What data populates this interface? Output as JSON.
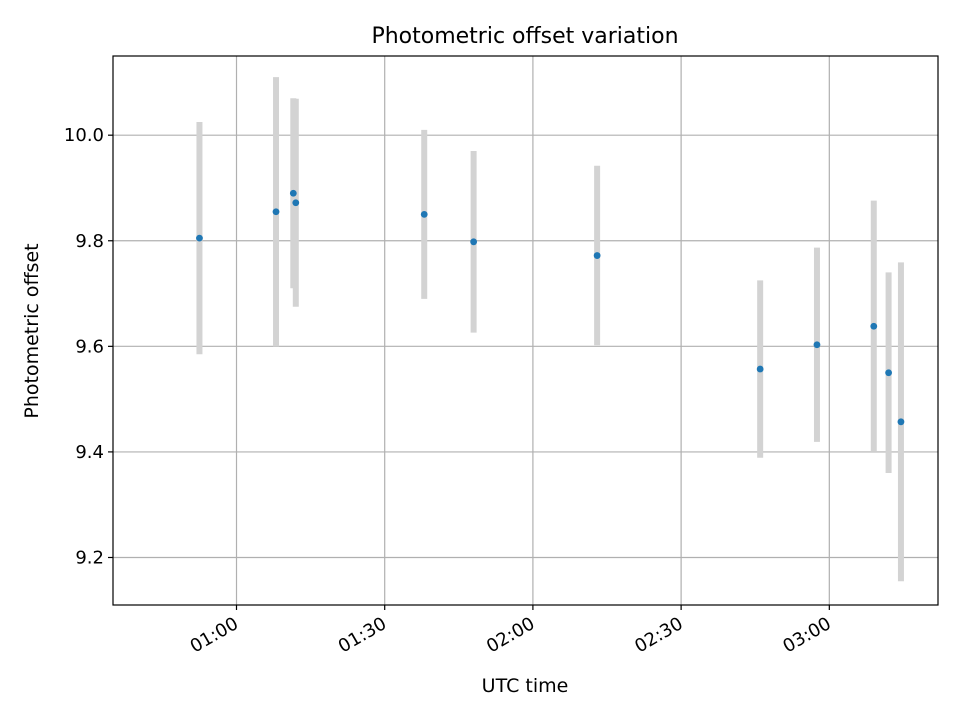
{
  "chart_data": {
    "type": "scatter",
    "title": "Photometric offset variation",
    "xlabel": "UTC time",
    "ylabel": "Photometric offset",
    "grid": true,
    "x_range": [
      "00:35",
      "03:22"
    ],
    "ylim": [
      9.11,
      10.15
    ],
    "x_ticks": [
      "01:00",
      "01:30",
      "02:00",
      "02:30",
      "03:00"
    ],
    "y_ticks": [
      9.2,
      9.4,
      9.6,
      9.8,
      10.0
    ],
    "y_tick_labels": [
      "9.2",
      "9.4",
      "9.6",
      "9.8",
      "10.0"
    ],
    "series": [
      {
        "points": [
          {
            "x": "00:52:30",
            "y": 9.805,
            "err": 0.22
          },
          {
            "x": "01:08:00",
            "y": 9.855,
            "err": 0.255
          },
          {
            "x": "01:11:30",
            "y": 9.89,
            "err": 0.18
          },
          {
            "x": "01:12:00",
            "y": 9.872,
            "err": 0.197
          },
          {
            "x": "01:38:00",
            "y": 9.85,
            "err": 0.16
          },
          {
            "x": "01:48:00",
            "y": 9.798,
            "err": 0.172
          },
          {
            "x": "02:13:00",
            "y": 9.772,
            "err": 0.17
          },
          {
            "x": "02:46:00",
            "y": 9.557,
            "err": 0.168
          },
          {
            "x": "02:57:30",
            "y": 9.603,
            "err": 0.184
          },
          {
            "x": "03:09:00",
            "y": 9.638,
            "err": 0.238
          },
          {
            "x": "03:12:00",
            "y": 9.55,
            "err": 0.19
          },
          {
            "x": "03:14:30",
            "y": 9.457,
            "err": 0.302
          }
        ]
      }
    ],
    "colors": {
      "marker": "#1f77b4",
      "errorbar": "#d3d3d3",
      "grid": "#b0b0b0",
      "axes": "#000000"
    }
  }
}
